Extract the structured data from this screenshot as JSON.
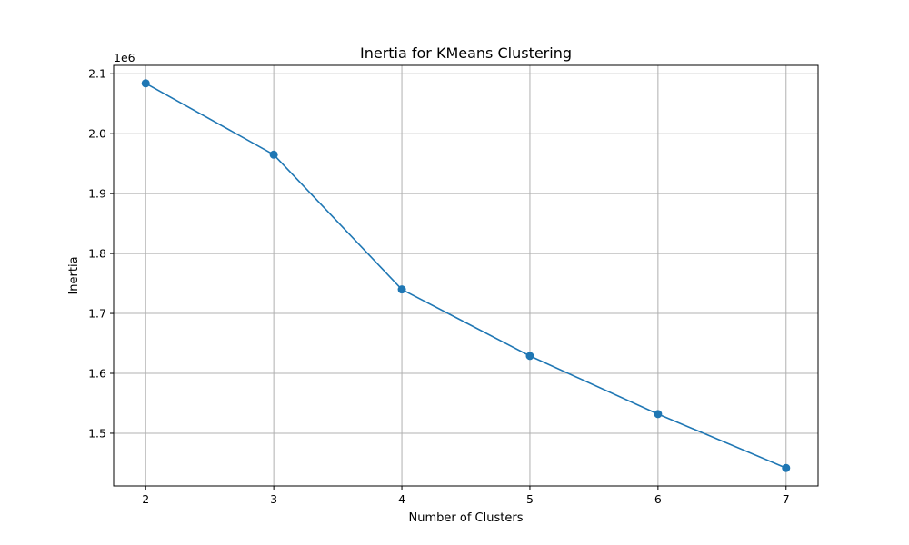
{
  "chart_data": {
    "type": "line",
    "title": "Inertia for KMeans Clustering",
    "xlabel": "Number of Clusters",
    "ylabel": "Inertia",
    "y_offset_label": "1e6",
    "x": [
      2,
      3,
      4,
      5,
      6,
      7
    ],
    "series": [
      {
        "values": [
          2.084,
          1.965,
          1.74,
          1.629,
          1.532,
          1.442
        ],
        "color": "#1f77b4",
        "marker": "circle"
      }
    ],
    "xlim": [
      1.75,
      7.25
    ],
    "ylim": [
      1.412,
      2.114
    ],
    "x_ticks": [
      2,
      3,
      4,
      5,
      6,
      7
    ],
    "x_tick_labels": [
      "2",
      "3",
      "4",
      "5",
      "6",
      "7"
    ],
    "y_ticks": [
      1.5,
      1.6,
      1.7,
      1.8,
      1.9,
      2.0,
      2.1
    ],
    "y_tick_labels": [
      "1.5",
      "1.6",
      "1.7",
      "1.8",
      "1.9",
      "2.0",
      "2.1"
    ],
    "grid": true,
    "legend": "none"
  }
}
